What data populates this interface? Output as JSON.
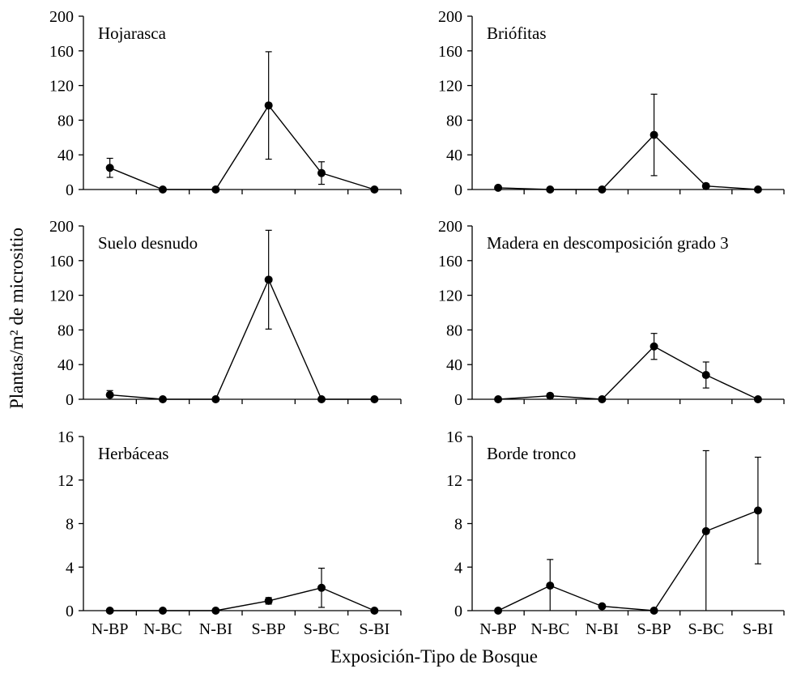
{
  "figure": {
    "ylabel": "Plantas/m² de micrositio",
    "xlabel": "Exposición-Tipo de Bosque"
  },
  "chart_data": [
    {
      "type": "line",
      "title": "Hojarasca",
      "categories": [
        "N-BP",
        "N-BC",
        "N-BI",
        "S-BP",
        "S-BC",
        "S-BI"
      ],
      "values": [
        25,
        0,
        0,
        97,
        19,
        0
      ],
      "error": [
        11,
        0,
        0,
        62,
        13,
        0
      ],
      "ylim": [
        0,
        200
      ],
      "yticks": [
        0,
        40,
        80,
        120,
        160,
        200
      ]
    },
    {
      "type": "line",
      "title": "Briófitas",
      "categories": [
        "N-BP",
        "N-BC",
        "N-BI",
        "S-BP",
        "S-BC",
        "S-BI"
      ],
      "values": [
        2,
        0,
        0,
        63,
        4,
        0
      ],
      "error": [
        0,
        0,
        0,
        47,
        0,
        0
      ],
      "ylim": [
        0,
        200
      ],
      "yticks": [
        0,
        40,
        80,
        120,
        160,
        200
      ]
    },
    {
      "type": "line",
      "title": "Suelo desnudo",
      "categories": [
        "N-BP",
        "N-BC",
        "N-BI",
        "S-BP",
        "S-BC",
        "S-BI"
      ],
      "values": [
        5,
        0,
        0,
        138,
        0,
        0
      ],
      "error": [
        5,
        0,
        0,
        57,
        0,
        0
      ],
      "ylim": [
        0,
        200
      ],
      "yticks": [
        0,
        40,
        80,
        120,
        160,
        200
      ]
    },
    {
      "type": "line",
      "title": "Madera en descomposición grado 3",
      "categories": [
        "N-BP",
        "N-BC",
        "N-BI",
        "S-BP",
        "S-BC",
        "S-BI"
      ],
      "values": [
        0,
        4,
        0,
        61,
        28,
        0
      ],
      "error": [
        0,
        0,
        0,
        15,
        15,
        0
      ],
      "ylim": [
        0,
        200
      ],
      "yticks": [
        0,
        40,
        80,
        120,
        160,
        200
      ]
    },
    {
      "type": "line",
      "title": "Herbáceas",
      "categories": [
        "N-BP",
        "N-BC",
        "N-BI",
        "S-BP",
        "S-BC",
        "S-BI"
      ],
      "values": [
        0,
        0,
        0,
        0.9,
        2.1,
        0
      ],
      "error": [
        0,
        0,
        0,
        0.3,
        1.8,
        0
      ],
      "ylim": [
        0,
        16
      ],
      "yticks": [
        0,
        4,
        8,
        12,
        16
      ],
      "xticklabels": true
    },
    {
      "type": "line",
      "title": "Borde tronco",
      "categories": [
        "N-BP",
        "N-BC",
        "N-BI",
        "S-BP",
        "S-BC",
        "S-BI"
      ],
      "values": [
        0,
        2.3,
        0.4,
        0,
        7.3,
        9.2
      ],
      "error": [
        0,
        2.4,
        0,
        0,
        7.4,
        4.9
      ],
      "ylim": [
        0,
        16
      ],
      "yticks": [
        0,
        4,
        8,
        12,
        16
      ],
      "xticklabels": true
    }
  ]
}
